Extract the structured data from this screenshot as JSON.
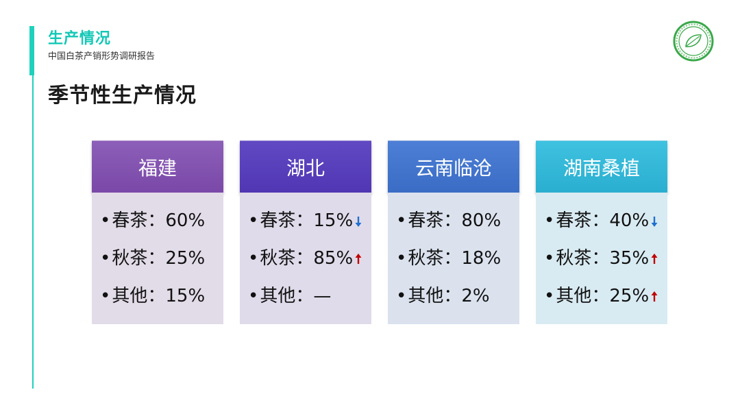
{
  "header": {
    "section_title": "生产情况",
    "subtitle": "中国白茶产销形势调研报告",
    "page_heading": "季节性生产情况"
  },
  "colors": {
    "accent": "#1fd1bd",
    "arrow_up": "#c00000",
    "arrow_down": "#1f6fd0",
    "logo_green": "#3aa84a"
  },
  "cards": [
    {
      "region": "福建",
      "items": [
        {
          "label": "春茶",
          "sep": "：",
          "value": "60%",
          "trend": null
        },
        {
          "label": "秋茶",
          "sep": "：",
          "value": "25%",
          "trend": null
        },
        {
          "label": "其他",
          "sep": "：",
          "value": "15%",
          "trend": null
        }
      ]
    },
    {
      "region": "湖北",
      "items": [
        {
          "label": "春茶",
          "sep": "：",
          "value": "15%",
          "trend": "down"
        },
        {
          "label": "秋茶",
          "sep": "：",
          "value": "85%",
          "trend": "up"
        },
        {
          "label": "其他",
          "sep": "：",
          "value": "—",
          "trend": null
        }
      ]
    },
    {
      "region": "云南临沧",
      "items": [
        {
          "label": "春茶",
          "sep": "：",
          "value": "80%",
          "trend": null
        },
        {
          "label": "秋茶",
          "sep": "：",
          "value": "18%",
          "trend": null
        },
        {
          "label": "其他",
          "sep": "：",
          "value": "2%",
          "trend": null
        }
      ]
    },
    {
      "region": "湖南桑植",
      "items": [
        {
          "label": "春茶",
          "sep": "：",
          "value": "40%",
          "trend": "down"
        },
        {
          "label": "秋茶",
          "sep": "：",
          "value": "35%",
          "trend": "up"
        },
        {
          "label": "其他",
          "sep": "：",
          "value": "25%",
          "trend": "up"
        }
      ]
    }
  ],
  "bullet": "•"
}
